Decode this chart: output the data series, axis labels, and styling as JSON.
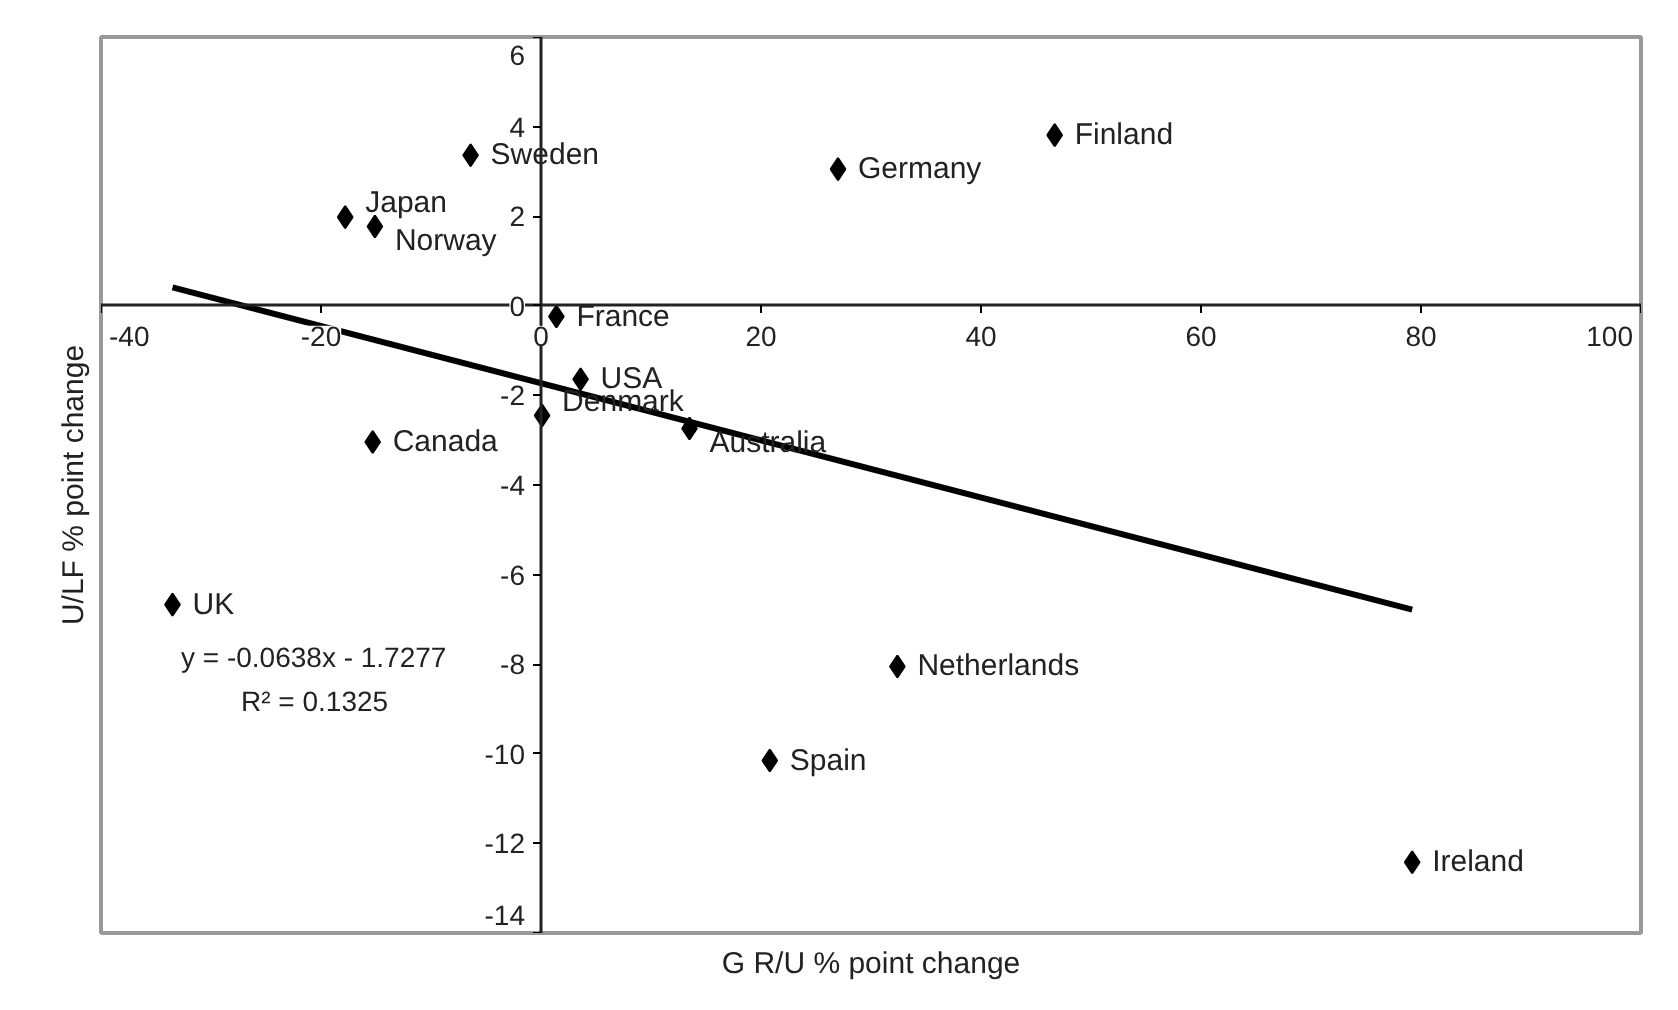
{
  "chart_data": {
    "type": "scatter",
    "xlabel": "G R/U % point change",
    "ylabel": "U/LF % point change",
    "xlim": [
      -40,
      100
    ],
    "ylim": [
      -14,
      6
    ],
    "xticks": [
      -40,
      -20,
      0,
      20,
      40,
      60,
      80,
      100
    ],
    "yticks": [
      -14,
      -12,
      -10,
      -8,
      -6,
      -4,
      -2,
      0,
      2,
      4,
      6
    ],
    "series": [
      {
        "marker": "diamond",
        "color": "#000000",
        "x": [
          -6.4,
          -17.8,
          -15.1,
          1.4,
          3.6,
          0.1,
          13.5,
          -15.3,
          27.0,
          46.7,
          -33.5,
          20.8,
          32.4,
          79.2
        ],
        "values": [
          3.36,
          1.98,
          1.77,
          -0.24,
          -1.64,
          -2.45,
          -2.74,
          -3.04,
          3.05,
          3.81,
          -6.67,
          -10.15,
          -8.05,
          -12.42
        ]
      },
      {
        "type": "line",
        "color": "#000000",
        "x": [
          -33.5,
          79.2
        ],
        "values": [
          0.41,
          -6.78
        ]
      }
    ],
    "annotations": [
      {
        "text": "Sweden",
        "x": -6.4,
        "y": 3.36
      },
      {
        "text": "Japan",
        "x": -17.8,
        "y": 1.98
      },
      {
        "text": "Norway",
        "x": -15.1,
        "y": 1.77
      },
      {
        "text": "France",
        "x": 1.4,
        "y": -0.24
      },
      {
        "text": "USA",
        "x": 3.6,
        "y": -1.64
      },
      {
        "text": "Denmark",
        "x": 0.1,
        "y": -2.45
      },
      {
        "text": "Australia",
        "x": 13.5,
        "y": -2.74
      },
      {
        "text": "Canada",
        "x": -15.3,
        "y": -3.04
      },
      {
        "text": "Germany",
        "x": 27.0,
        "y": 3.05
      },
      {
        "text": "Finland",
        "x": 46.7,
        "y": 3.81
      },
      {
        "text": "UK",
        "x": -33.5,
        "y": -6.67
      },
      {
        "text": "Spain",
        "x": 20.8,
        "y": -10.15
      },
      {
        "text": "Netherlands",
        "x": 32.4,
        "y": -8.05
      },
      {
        "text": "Ireland",
        "x": 79.2,
        "y": -12.42
      },
      "y = -0.0638x - 1.7277",
      "R² = 0.1325"
    ]
  }
}
